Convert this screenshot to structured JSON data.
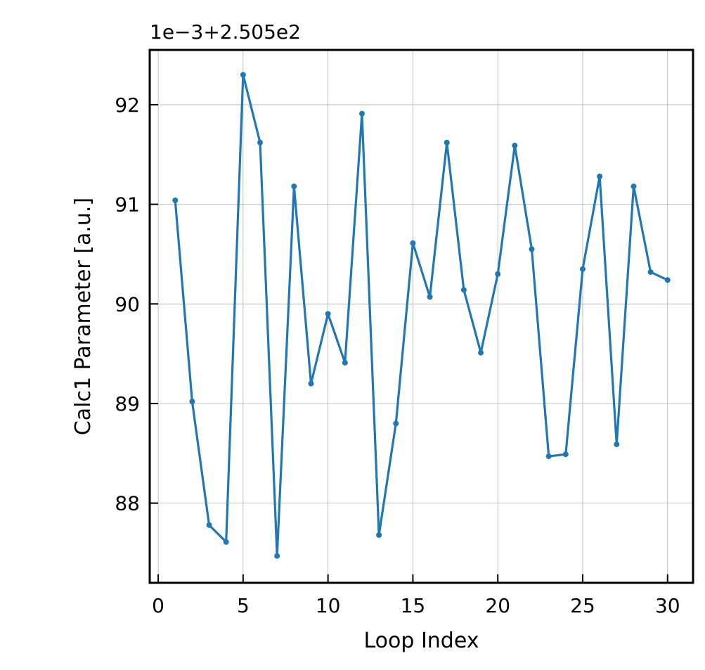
{
  "chart_data": {
    "type": "line",
    "xlabel": "Loop Index",
    "ylabel": "Calc1 Parameter [a.u.]",
    "y_offset_label": "1e−3+2.505e2",
    "xlim": [
      -0.5,
      31.5
    ],
    "ylim": [
      87.2,
      92.55
    ],
    "x_ticks": [
      0,
      5,
      10,
      15,
      20,
      25,
      30
    ],
    "y_ticks": [
      88,
      89,
      90,
      91,
      92
    ],
    "grid": true,
    "color": "#1f77b4",
    "series": [
      {
        "x": [
          1,
          2,
          3,
          4,
          5,
          6,
          7,
          8,
          9,
          10,
          11,
          12,
          13,
          14,
          15,
          16,
          17,
          18,
          19,
          20,
          21,
          22,
          23,
          24,
          25,
          26,
          27,
          28,
          29,
          30
        ],
        "values": [
          91.04,
          89.02,
          87.78,
          87.61,
          92.3,
          91.62,
          87.47,
          91.18,
          89.2,
          89.9,
          89.41,
          91.91,
          87.68,
          88.8,
          90.61,
          90.07,
          91.62,
          90.14,
          89.51,
          90.3,
          91.59,
          90.55,
          88.47,
          88.49,
          90.35,
          91.28,
          88.59,
          91.18,
          90.32,
          90.24
        ]
      }
    ]
  }
}
